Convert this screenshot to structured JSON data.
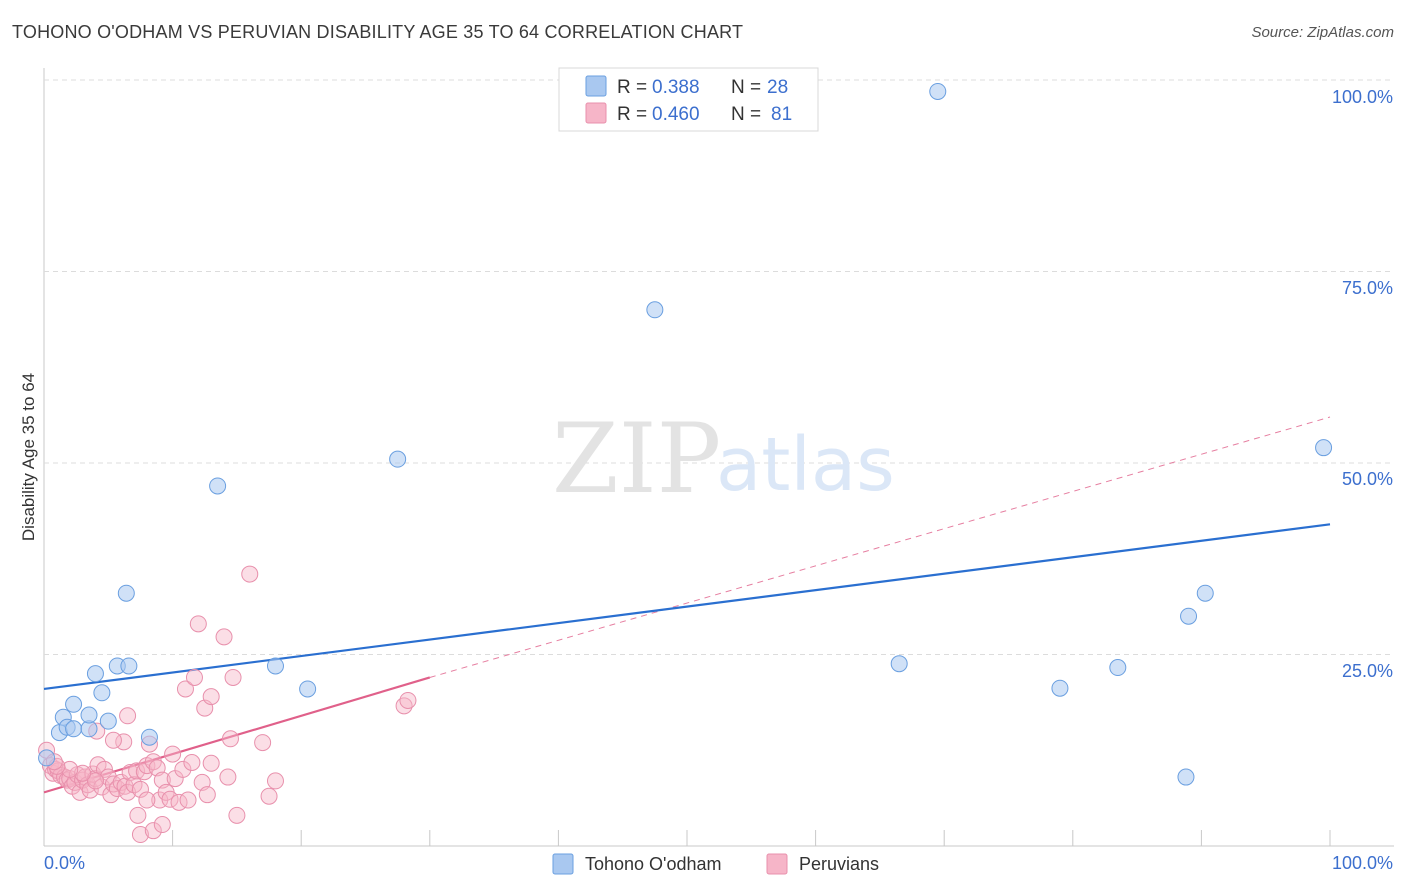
{
  "title": "TOHONO O'ODHAM VS PERUVIAN DISABILITY AGE 35 TO 64 CORRELATION CHART",
  "source": "Source: ZipAtlas.com",
  "watermark": {
    "zip": "ZIP",
    "atlas": "atlas"
  },
  "colors": {
    "blue_fill": "#a9c8f0",
    "blue_stroke": "#6a9fe0",
    "blue_line": "#2a6fd0",
    "pink_fill": "#f6b5c8",
    "pink_stroke": "#e890ac",
    "pink_line": "#e0608a",
    "tick_text": "#3c6fce",
    "grid": "#dcdcdc"
  },
  "legend": {
    "series1": {
      "r_label": "R =",
      "r_value": "0.388",
      "n_label": "N =",
      "n_value": "28"
    },
    "series2": {
      "r_label": "R =",
      "r_value": "0.460",
      "n_label": "N =",
      "n_value": "81"
    }
  },
  "chart_data": {
    "type": "scatter",
    "title": "TOHONO O'ODHAM VS PERUVIAN DISABILITY AGE 35 TO 64 CORRELATION CHART",
    "xlabel": "",
    "ylabel": "Disability Age 35 to 64",
    "xlim": [
      0,
      100
    ],
    "ylim": [
      0,
      100
    ],
    "x_tick_labels": [
      "0.0%",
      "100.0%"
    ],
    "y_ticks": [
      25,
      50,
      75,
      100
    ],
    "y_tick_labels": [
      "25.0%",
      "50.0%",
      "75.0%",
      "100.0%"
    ],
    "grid": true,
    "series": [
      {
        "name": "Tohono O'odham",
        "color": "#a9c8f0",
        "r": 0.388,
        "n": 28,
        "trend": {
          "x": [
            0,
            100
          ],
          "y": [
            20.5,
            42.0
          ],
          "style": "solid"
        },
        "points": [
          [
            0.2,
            11.5
          ],
          [
            1.2,
            14.8
          ],
          [
            1.5,
            16.8
          ],
          [
            1.8,
            15.5
          ],
          [
            2.3,
            15.3
          ],
          [
            2.3,
            18.5
          ],
          [
            3.5,
            15.3
          ],
          [
            3.5,
            17.1
          ],
          [
            4.0,
            22.5
          ],
          [
            4.5,
            20.0
          ],
          [
            5.0,
            16.3
          ],
          [
            5.7,
            23.5
          ],
          [
            6.4,
            33.0
          ],
          [
            6.6,
            23.5
          ],
          [
            8.2,
            14.2
          ],
          [
            13.5,
            47.0
          ],
          [
            18.0,
            23.5
          ],
          [
            20.5,
            20.5
          ],
          [
            27.5,
            50.5
          ],
          [
            47.5,
            70.0
          ],
          [
            69.5,
            98.5
          ],
          [
            66.5,
            23.8
          ],
          [
            79.0,
            20.6
          ],
          [
            83.5,
            23.3
          ],
          [
            88.8,
            9.0
          ],
          [
            89.0,
            30.0
          ],
          [
            90.3,
            33.0
          ],
          [
            99.5,
            52.0
          ]
        ]
      },
      {
        "name": "Peruvians",
        "color": "#f6b5c8",
        "r": 0.46,
        "n": 81,
        "trend": {
          "x": [
            0,
            30
          ],
          "y": [
            7.0,
            22.0
          ],
          "style": "solid"
        },
        "trend_extended": {
          "x": [
            30,
            100
          ],
          "y": [
            22.0,
            56.0
          ],
          "style": "dashed"
        },
        "points": [
          [
            0.2,
            12.5
          ],
          [
            0.5,
            10.5
          ],
          [
            0.7,
            9.5
          ],
          [
            0.9,
            10.0
          ],
          [
            1.1,
            9.8
          ],
          [
            1.3,
            9.2
          ],
          [
            1.6,
            9.0
          ],
          [
            1.8,
            8.6
          ],
          [
            2.0,
            8.8
          ],
          [
            2.2,
            7.8
          ],
          [
            2.4,
            8.3
          ],
          [
            2.6,
            9.3
          ],
          [
            2.8,
            7.0
          ],
          [
            3.0,
            8.6
          ],
          [
            3.2,
            9.0
          ],
          [
            3.4,
            8.0
          ],
          [
            3.6,
            7.3
          ],
          [
            3.8,
            9.4
          ],
          [
            4.0,
            8.8
          ],
          [
            4.2,
            10.6
          ],
          [
            4.5,
            7.7
          ],
          [
            4.7,
            10.0
          ],
          [
            5.0,
            9.0
          ],
          [
            5.2,
            6.7
          ],
          [
            5.4,
            8.1
          ],
          [
            5.7,
            7.5
          ],
          [
            6.0,
            8.3
          ],
          [
            6.3,
            7.8
          ],
          [
            6.5,
            7.0
          ],
          [
            6.7,
            9.6
          ],
          [
            7.0,
            8.0
          ],
          [
            7.2,
            9.8
          ],
          [
            7.5,
            7.4
          ],
          [
            7.8,
            9.7
          ],
          [
            8.0,
            10.5
          ],
          [
            8.2,
            13.3
          ],
          [
            8.5,
            11.0
          ],
          [
            8.8,
            10.2
          ],
          [
            9.0,
            6.0
          ],
          [
            9.2,
            8.6
          ],
          [
            9.5,
            7.0
          ],
          [
            9.8,
            6.1
          ],
          [
            10.0,
            12.0
          ],
          [
            10.2,
            8.8
          ],
          [
            10.5,
            5.7
          ],
          [
            10.8,
            10.0
          ],
          [
            11.2,
            6.0
          ],
          [
            11.5,
            10.9
          ],
          [
            12.0,
            29.0
          ],
          [
            12.5,
            18.0
          ],
          [
            13.0,
            19.5
          ],
          [
            14.0,
            27.3
          ],
          [
            14.3,
            9.0
          ],
          [
            14.5,
            14.0
          ],
          [
            14.7,
            22.0
          ],
          [
            15.0,
            4.0
          ],
          [
            16.0,
            35.5
          ],
          [
            17.0,
            13.5
          ],
          [
            17.5,
            6.5
          ],
          [
            18.0,
            8.5
          ],
          [
            11.0,
            20.5
          ],
          [
            11.7,
            22.0
          ],
          [
            12.3,
            8.3
          ],
          [
            12.7,
            6.7
          ],
          [
            6.5,
            17.0
          ],
          [
            6.2,
            13.6
          ],
          [
            5.4,
            13.8
          ],
          [
            4.0,
            8.5
          ],
          [
            4.1,
            15.0
          ],
          [
            3.0,
            9.5
          ],
          [
            2.0,
            10.0
          ],
          [
            1.0,
            10.4
          ],
          [
            0.8,
            11.0
          ],
          [
            7.5,
            1.5
          ],
          [
            8.5,
            2.0
          ],
          [
            9.2,
            2.8
          ],
          [
            7.3,
            4.0
          ],
          [
            8.0,
            6.0
          ],
          [
            28.0,
            18.3
          ],
          [
            28.3,
            19.0
          ],
          [
            13.0,
            10.8
          ]
        ]
      }
    ]
  }
}
